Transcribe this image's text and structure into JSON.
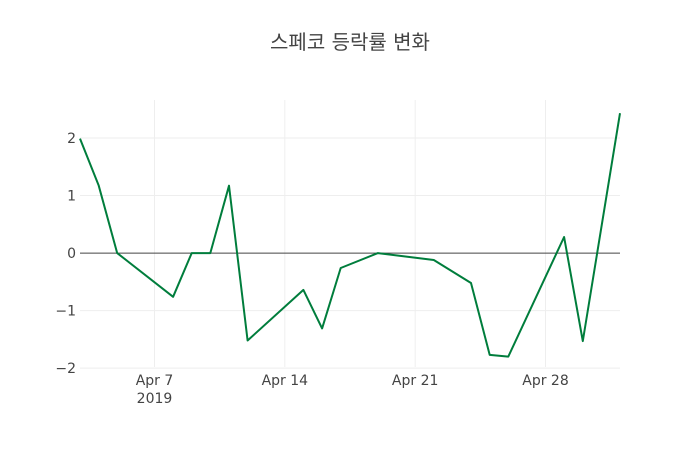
{
  "chart_data": {
    "type": "line",
    "title": "스페코 등락률 변화",
    "xlabel": "",
    "ylabel": "",
    "x": [
      "2019-04-03",
      "2019-04-04",
      "2019-04-05",
      "2019-04-08",
      "2019-04-09",
      "2019-04-10",
      "2019-04-11",
      "2019-04-12",
      "2019-04-15",
      "2019-04-16",
      "2019-04-17",
      "2019-04-19",
      "2019-04-22",
      "2019-04-24",
      "2019-04-25",
      "2019-04-26",
      "2019-04-29",
      "2019-04-30",
      "2019-05-02"
    ],
    "series": [
      {
        "name": "등락률",
        "color": "#007d3c",
        "values": [
          1.99,
          1.18,
          0,
          -0.76,
          0,
          0,
          1.17,
          -1.52,
          -0.64,
          -1.31,
          -0.26,
          0,
          -0.12,
          -0.52,
          -1.77,
          -1.8,
          0.28,
          -1.53,
          2.43
        ]
      }
    ],
    "xlim": [
      "2019-04-03",
      "2019-05-02"
    ],
    "ylim": [
      -1.98,
      2.66
    ],
    "x_ticks": [
      {
        "date": "2019-04-07",
        "label": "Apr 7",
        "sublabel": "2019"
      },
      {
        "date": "2019-04-14",
        "label": "Apr 14"
      },
      {
        "date": "2019-04-21",
        "label": "Apr 21"
      },
      {
        "date": "2019-04-28",
        "label": "Apr 28"
      }
    ],
    "y_ticks": [
      {
        "value": 2,
        "label": "2"
      },
      {
        "value": 1,
        "label": "1"
      },
      {
        "value": 0,
        "label": "0"
      },
      {
        "value": -1,
        "label": "−1"
      },
      {
        "value": -2,
        "label": "−2"
      }
    ],
    "grid": true,
    "zeroline": true
  }
}
